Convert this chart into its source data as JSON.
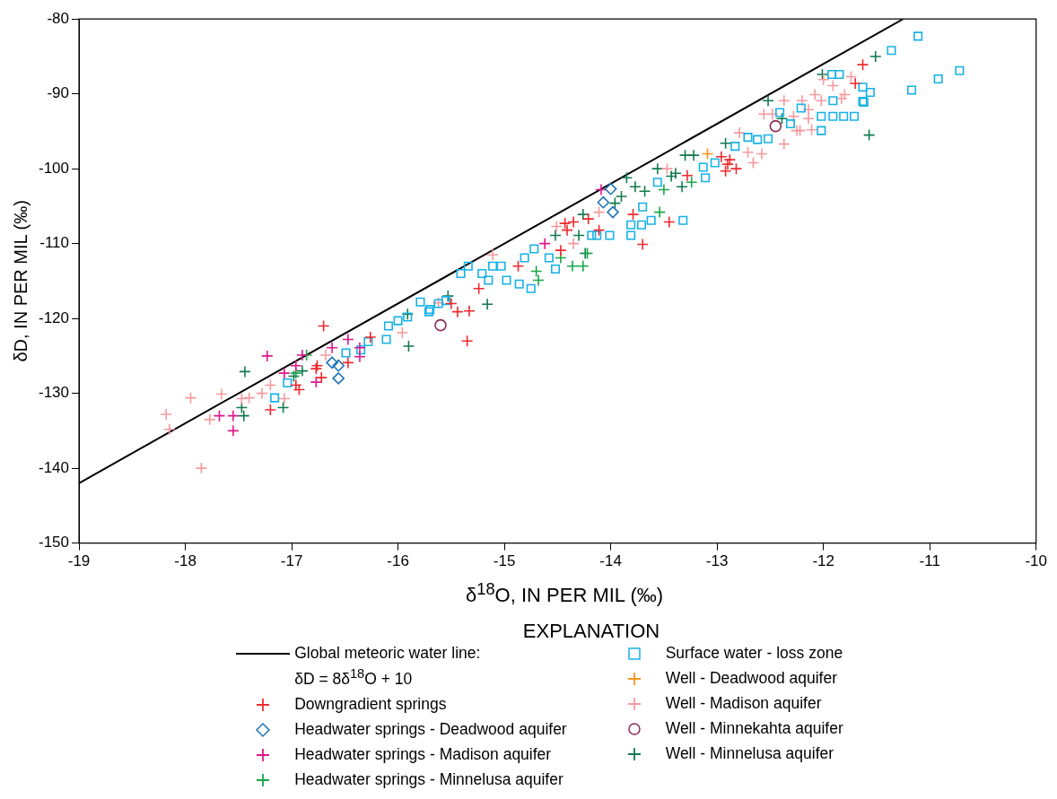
{
  "chart_data": {
    "type": "scatter",
    "xlabel": "δ$^{18}$O, IN PER MIL (‰)",
    "ylabel": "δD, IN PER MIL (‰)",
    "legend_title": "EXPLANATION",
    "legend": "bottom",
    "grid": false,
    "xlim": [
      -19,
      -10
    ],
    "xticks": [
      -19,
      -18,
      -17,
      -16,
      -15,
      -14,
      -13,
      -12,
      -11,
      -10
    ],
    "ylim": [
      -150,
      -80
    ],
    "yticks": [
      -150,
      -140,
      -130,
      -120,
      -110,
      -100,
      -90,
      -80
    ],
    "series": [
      {
        "name": "Global meteoric water line: δD = 8δ$^{18}$O + 10",
        "type": "line",
        "color": "#000000",
        "line_style": "solid",
        "marker": "none",
        "x": [
          -19,
          -11.25
        ],
        "values": [
          -142,
          -80
        ]
      },
      {
        "name": "Downgradient springs",
        "color": "#ee2a2e",
        "marker": "cross",
        "x": [
          -16.7,
          -17.2,
          -16.93,
          -16.72,
          -16.77,
          -16.47,
          -16.26,
          -16.96,
          -16.76,
          -14.87,
          -15.24,
          -15.44,
          -15.33,
          -15.5,
          -15.35,
          -14.47,
          -14.41,
          -14.43,
          -14.35,
          -14.11,
          -14.21,
          -13.79,
          -13.7,
          -13.45,
          -13.28,
          -12.96,
          -12.9,
          -12.82,
          -12.92,
          -12.88,
          -11.63,
          -11.7
        ],
        "values": [
          -121,
          -132.2,
          -129.5,
          -127.9,
          -126.7,
          -125.9,
          -122.5,
          -128.9,
          -126.3,
          -113,
          -116,
          -119.1,
          -119,
          -118,
          -123,
          -110.9,
          -108.2,
          -107.3,
          -107.1,
          -108.2,
          -106.7,
          -106.1,
          -110.1,
          -107.1,
          -100.9,
          -98.4,
          -99.4,
          -100,
          -100.3,
          -98.8,
          -86.1,
          -88.6
        ]
      },
      {
        "name": "Headwater springs - Deadwood aquifer",
        "color": "#1f72b8",
        "marker": "diamond",
        "x": [
          -16.62,
          -16.56,
          -16.56,
          -14.07,
          -13.98,
          -14.0
        ],
        "values": [
          -125.9,
          -126.3,
          -128,
          -104.5,
          -105.8,
          -102.7
        ]
      },
      {
        "name": "Headwater springs - Madison aquifer",
        "color": "#e0168a",
        "marker": "cross",
        "x": [
          -17.23,
          -17.68,
          -17.55,
          -17.55,
          -16.9,
          -16.62,
          -16.47,
          -16.36,
          -16.36,
          -17.07,
          -16.96,
          -16.77,
          -14.62,
          -14.09
        ],
        "values": [
          -125,
          -133,
          -133,
          -135,
          -124.9,
          -123.9,
          -122.8,
          -123.9,
          -125.1,
          -127.3,
          -126.3,
          -128.5,
          -110,
          -102.8
        ]
      },
      {
        "name": "Headwater springs - Minnelusa aquifer",
        "color": "#1aa64a",
        "marker": "cross",
        "x": [
          -16.86,
          -16.96,
          -14.7,
          -14.68,
          -14.36,
          -14.26,
          -14.47,
          -13.54,
          -14.22,
          -13.5,
          -13.24
        ],
        "values": [
          -124.9,
          -127.3,
          -113.7,
          -114.9,
          -113,
          -113,
          -111.9,
          -105.8,
          -111.3,
          -102.8,
          -101.8
        ]
      },
      {
        "name": "Surface water - loss zone",
        "color": "#17b1e8",
        "marker": "square",
        "x": [
          -17.16,
          -17.04,
          -16.49,
          -16.35,
          -16.28,
          -16.11,
          -16.09,
          -16.0,
          -15.91,
          -15.7,
          -15.79,
          -15.55,
          -15.34,
          -15.41,
          -15.21,
          -15.11,
          -15.03,
          -15.15,
          -14.98,
          -14.86,
          -14.75,
          -14.81,
          -14.72,
          -14.58,
          -14.52,
          -15.71,
          -15.62,
          -14.01,
          -13.81,
          -13.81,
          -13.71,
          -14.13,
          -14.18,
          -13.32,
          -13.62,
          -13.7,
          -13.56,
          -13.13,
          -13.11,
          -13.02,
          -12.83,
          -12.71,
          -12.62,
          -12.52,
          -12.41,
          -12.31,
          -12.21,
          -12.02,
          -11.91,
          -11.81,
          -11.71,
          -12.02,
          -11.91,
          -11.62,
          -11.11,
          -11.36,
          -10.72,
          -10.92,
          -11.17,
          -11.85,
          -11.92,
          -11.63,
          -11.56,
          -11.63
        ],
        "values": [
          -130.6,
          -128.6,
          -124.6,
          -124.2,
          -123.1,
          -122.8,
          -121,
          -120.3,
          -119.8,
          -118.8,
          -117.8,
          -117.6,
          -113,
          -114,
          -114,
          -113,
          -113,
          -114.9,
          -114.9,
          -115.4,
          -116,
          -111.9,
          -110.7,
          -111.9,
          -113.4,
          -119.1,
          -118,
          -108.9,
          -108.9,
          -107.5,
          -107.5,
          -108.9,
          -108.9,
          -106.9,
          -106.9,
          -105.1,
          -101.8,
          -99.8,
          -101.2,
          -99.2,
          -97,
          -95.8,
          -96.1,
          -96,
          -92.5,
          -94,
          -91.9,
          -93,
          -93,
          -93,
          -93,
          -94.9,
          -90.9,
          -91.1,
          -82.3,
          -84.2,
          -86.9,
          -88,
          -89.5,
          -87.4,
          -87.4,
          -89.1,
          -89.8,
          -91
        ]
      },
      {
        "name": "Well - Deadwood aquifer",
        "color": "#f7941d",
        "marker": "cross",
        "x": [
          -13.09
        ],
        "values": [
          -98
        ]
      },
      {
        "name": "Well - Madison aquifer",
        "color": "#f59a9e",
        "marker": "cross",
        "x": [
          -18.18,
          -18.15,
          -17.95,
          -17.85,
          -17.66,
          -17.77,
          -17.47,
          -17.4,
          -17.28,
          -17.2,
          -17.07,
          -16.68,
          -15.96,
          -15.11,
          -15.62,
          -14.51,
          -14.35,
          -14.11,
          -13.47,
          -12.79,
          -12.71,
          -12.58,
          -12.66,
          -12.37,
          -12.56,
          -12.37,
          -12.22,
          -12.11,
          -12.14,
          -12.02,
          -11.83,
          -12.08,
          -12.0,
          -11.91,
          -11.8,
          -11.74,
          -12.2,
          -12.28,
          -12.14,
          -12.25,
          -12.48
        ],
        "values": [
          -132.8,
          -134.8,
          -130.6,
          -140,
          -130.1,
          -133.5,
          -130.7,
          -130.6,
          -130,
          -128.9,
          -130.7,
          -124.9,
          -121.9,
          -111.5,
          -117.9,
          -107.7,
          -110,
          -105.8,
          -100,
          -95.2,
          -97.8,
          -98,
          -99.2,
          -96.7,
          -92.7,
          -90.9,
          -94.9,
          -94.8,
          -92.1,
          -90.9,
          -90.6,
          -90.1,
          -88.1,
          -88.9,
          -90.1,
          -87.7,
          -90.9,
          -93,
          -93.3,
          -94.9,
          -92.7
        ]
      },
      {
        "name": "Well - Minnekahta aquifer",
        "color": "#8b2a5a",
        "marker": "circle",
        "x": [
          -15.6,
          -12.45
        ],
        "values": [
          -120.9,
          -94.3
        ]
      },
      {
        "name": "Well - Minnelusa aquifer",
        "color": "#137a4f",
        "marker": "cross",
        "x": [
          -17.44,
          -17.47,
          -17.45,
          -17.08,
          -16.98,
          -16.9,
          -15.91,
          -15.9,
          -15.53,
          -15.16,
          -14.24,
          -14.52,
          -14.3,
          -14.26,
          -13.96,
          -13.43,
          -13.33,
          -13.3,
          -13.22,
          -12.92,
          -12.39,
          -12.52,
          -11.57,
          -12.01,
          -11.51,
          -13.85,
          -13.77,
          -13.68,
          -13.9,
          -13.56,
          -13.39
        ],
        "values": [
          -127.1,
          -131.9,
          -133,
          -131.9,
          -127.7,
          -127,
          -119.4,
          -123.7,
          -117,
          -118.1,
          -111.3,
          -108.9,
          -108.9,
          -106.1,
          -104.6,
          -101,
          -102.4,
          -98.2,
          -98.2,
          -96.6,
          -93.3,
          -90.9,
          -95.5,
          -87.4,
          -85,
          -101.2,
          -102.4,
          -103,
          -103.7,
          -100,
          -100.6
        ]
      }
    ]
  }
}
